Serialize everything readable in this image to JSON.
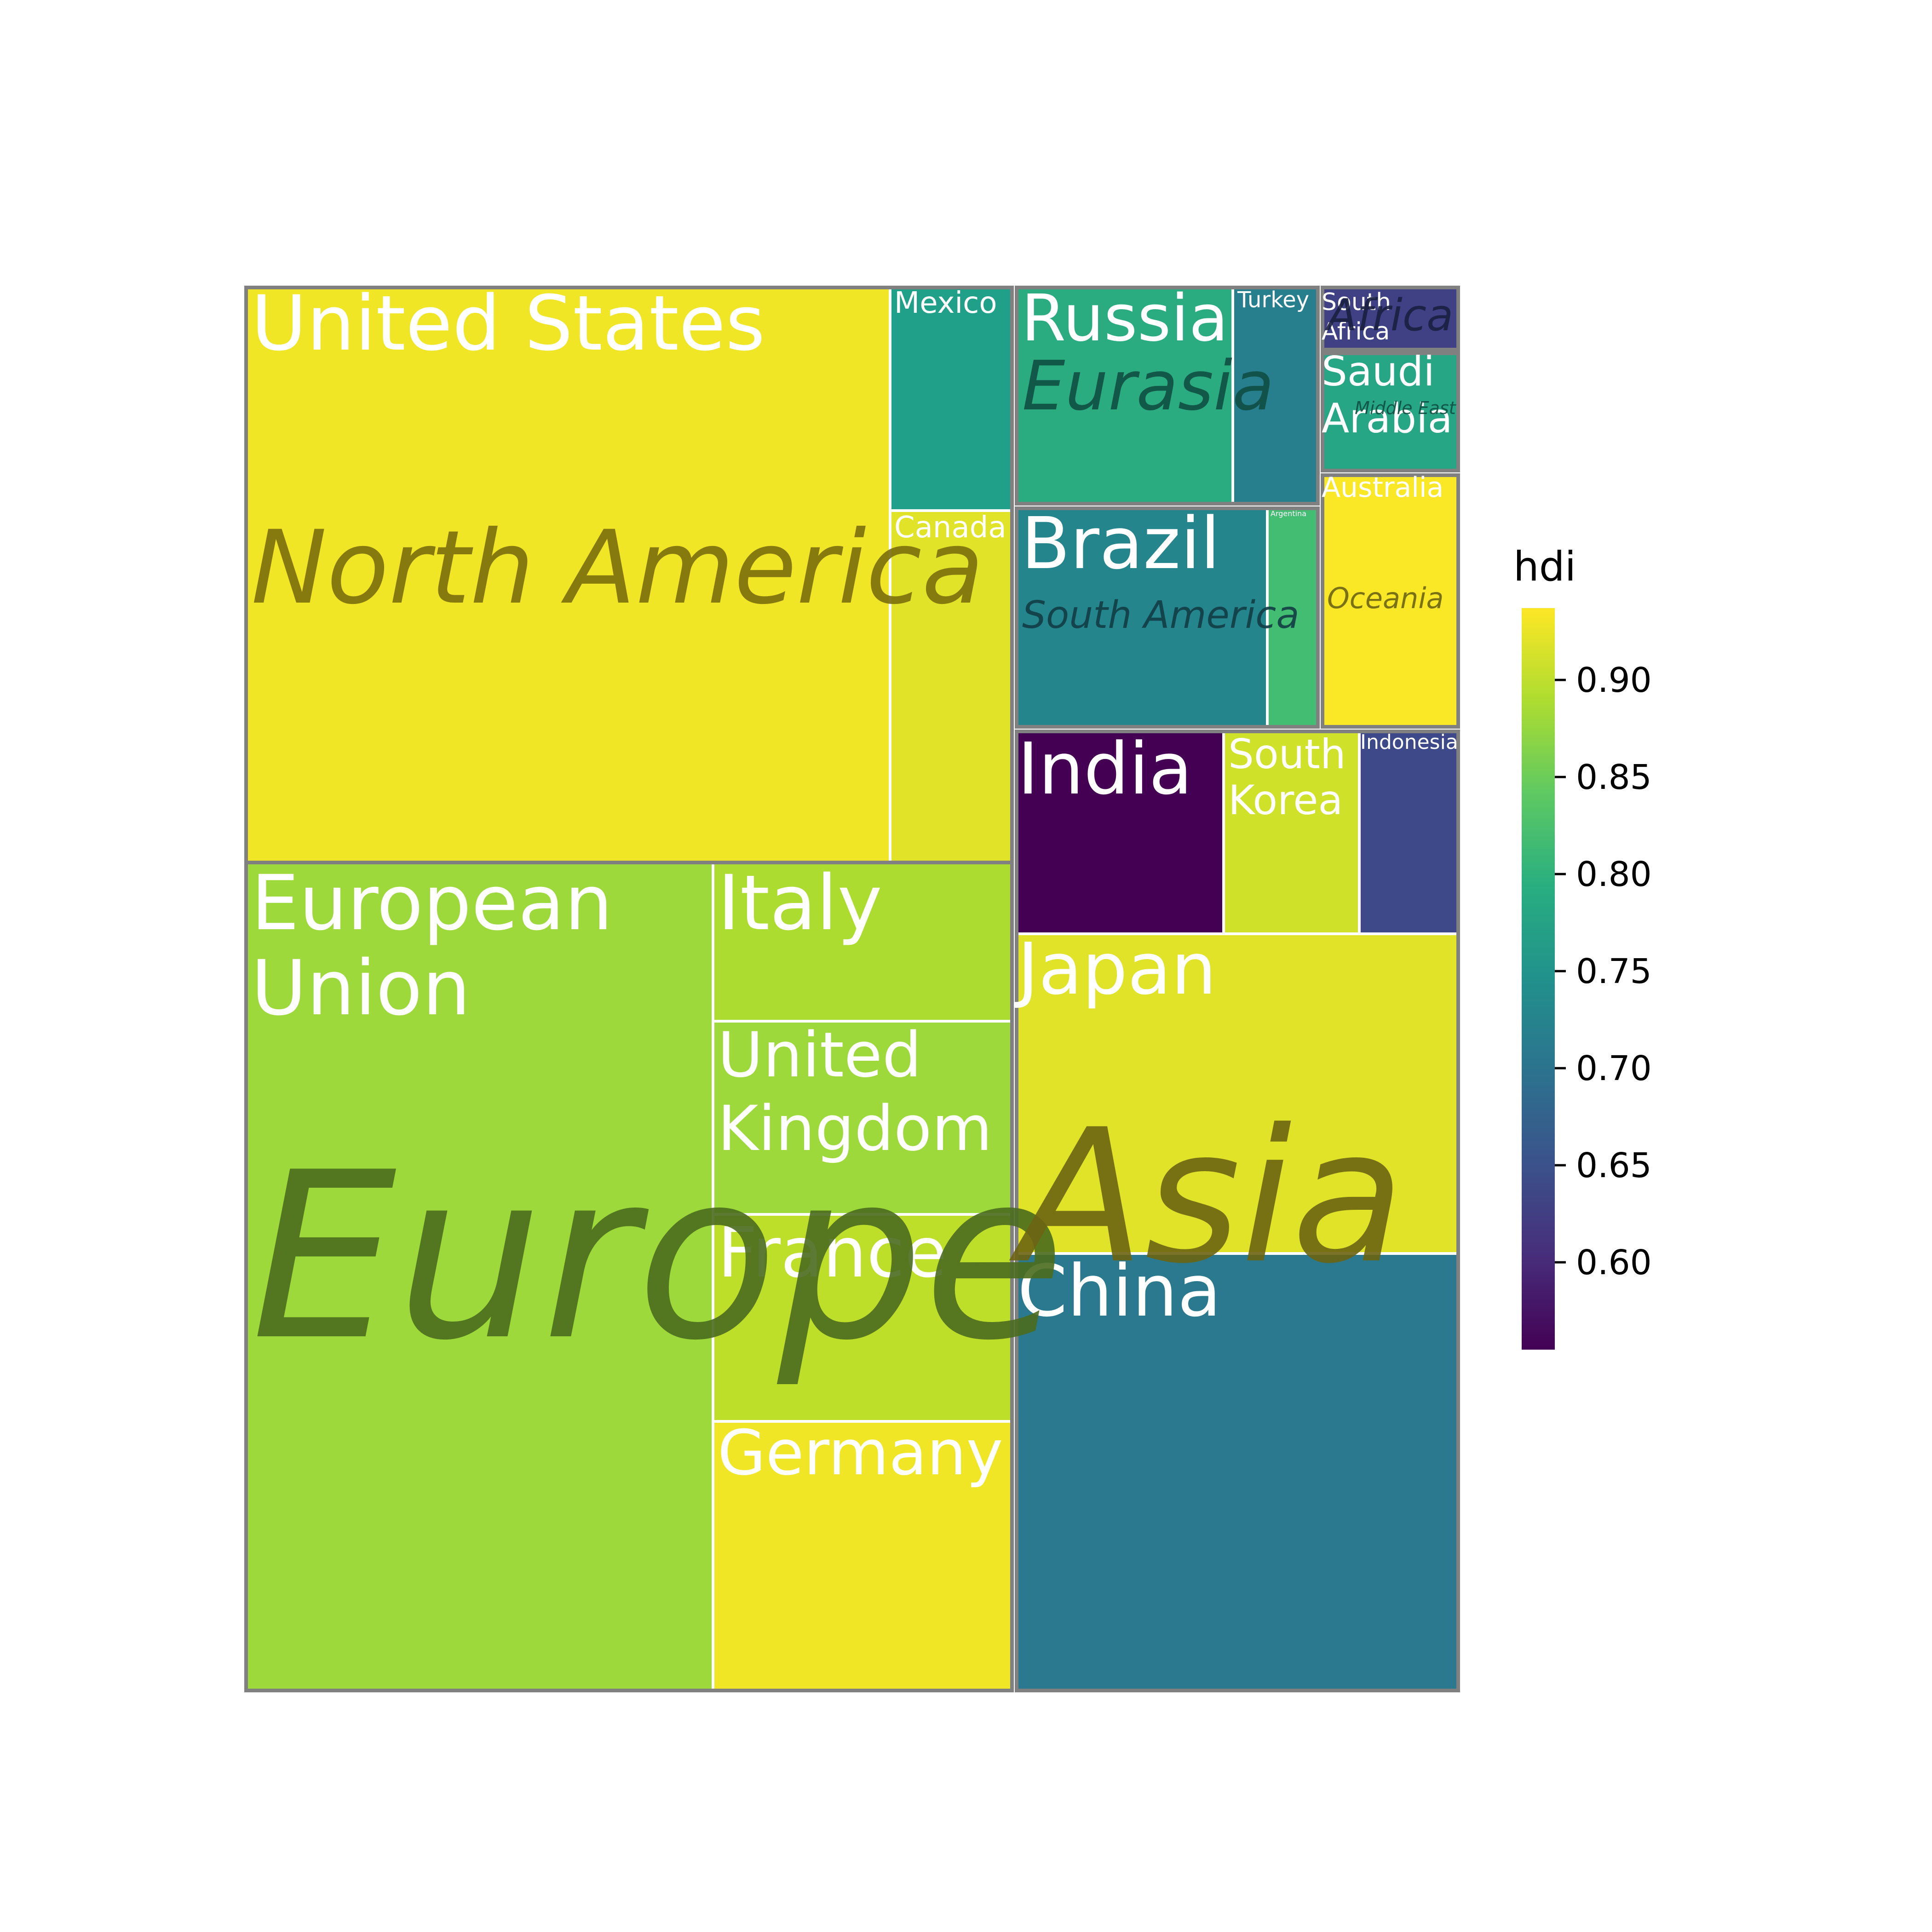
{
  "chart_data": {
    "type": "treemap",
    "title": "",
    "colorbar": {
      "title": "hdi",
      "min": 0.555,
      "max": 0.937,
      "ticks": [
        0.6,
        0.65,
        0.7,
        0.75,
        0.8,
        0.85,
        0.9
      ],
      "tick_labels": [
        "0.60",
        "0.65",
        "0.70",
        "0.75",
        "0.80",
        "0.85",
        "0.90"
      ],
      "colormap": "viridis"
    },
    "regions": [
      {
        "name": "North America",
        "label": "North America",
        "text_color": "#7a6e0c",
        "countries": [
          {
            "name": "United States",
            "label": "United States",
            "hdi": 0.93
          },
          {
            "name": "Mexico",
            "label": "Mexico",
            "hdi": 0.77
          },
          {
            "name": "Canada",
            "label": "Canada",
            "hdi": 0.92
          }
        ]
      },
      {
        "name": "Europe",
        "label": "Europe",
        "text_color": "#4a6b1e",
        "countries": [
          {
            "name": "European Union",
            "label": "European Union",
            "hdi": 0.88
          },
          {
            "name": "Italy",
            "label": "Italy",
            "hdi": 0.89
          },
          {
            "name": "United Kingdom",
            "label": "United Kingdom",
            "hdi": 0.88
          },
          {
            "name": "France",
            "label": "France",
            "hdi": 0.9
          },
          {
            "name": "Germany",
            "label": "Germany",
            "hdi": 0.93
          }
        ]
      },
      {
        "name": "Eurasia",
        "label": "Eurasia",
        "text_color": "#0f4f42",
        "countries": [
          {
            "name": "Russia",
            "label": "Russia",
            "hdi": 0.79
          },
          {
            "name": "Turkey",
            "label": "Turkey",
            "hdi": 0.72
          }
        ]
      },
      {
        "name": "Africa",
        "label": "Africa",
        "text_color": "#1a1f40",
        "countries": [
          {
            "name": "South Africa",
            "label": "South Africa",
            "hdi": 0.63
          }
        ]
      },
      {
        "name": "Middle East",
        "label": "Middle East",
        "text_color": "#0f4f42",
        "countries": [
          {
            "name": "Saudi Arabia",
            "label": "Saudi Arabia",
            "hdi": 0.78
          }
        ]
      },
      {
        "name": "South America",
        "label": "South America",
        "text_color": "#123c44",
        "countries": [
          {
            "name": "Brazil",
            "label": "Brazil",
            "hdi": 0.73
          },
          {
            "name": "Argentina",
            "label": "Argentina",
            "hdi": 0.82
          }
        ]
      },
      {
        "name": "Oceania",
        "label": "Oceania",
        "text_color": "#6b6412",
        "countries": [
          {
            "name": "Australia",
            "label": "Australia",
            "hdi": 0.935
          }
        ]
      },
      {
        "name": "Asia",
        "label": "Asia",
        "text_color": "#6b6412",
        "countries": [
          {
            "name": "India",
            "label": "India",
            "hdi": 0.555
          },
          {
            "name": "South Korea",
            "label": "South Korea",
            "hdi": 0.91
          },
          {
            "name": "Indonesia",
            "label": "Indonesia",
            "hdi": 0.64
          },
          {
            "name": "Japan",
            "label": "Japan",
            "hdi": 0.92
          },
          {
            "name": "China",
            "label": "China",
            "hdi": 0.71
          }
        ]
      }
    ]
  }
}
